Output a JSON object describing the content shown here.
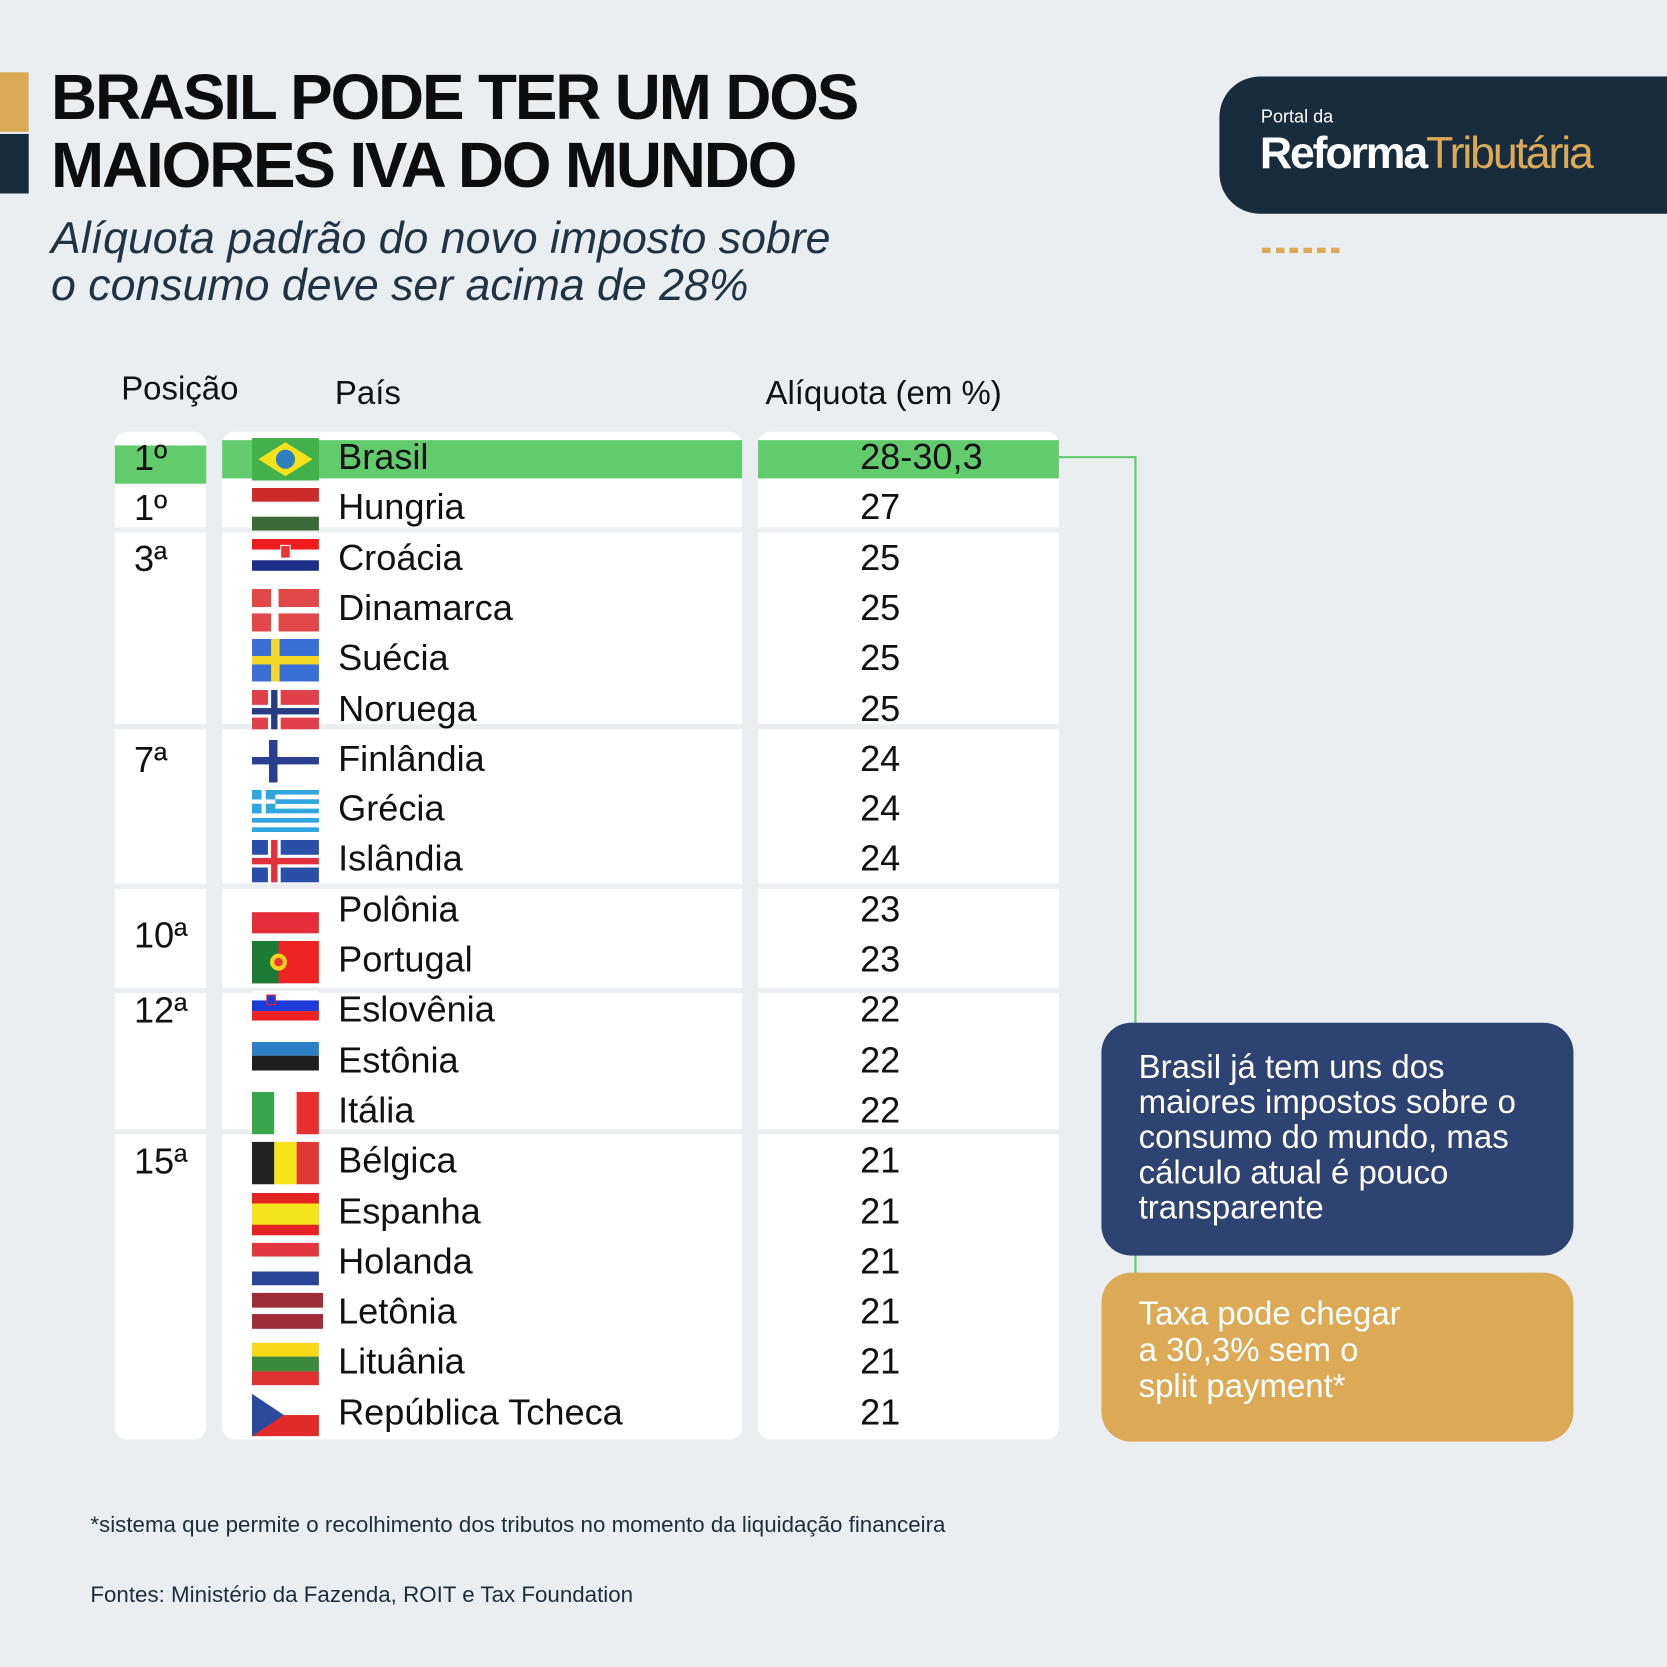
{
  "title_lines": [
    "BRASIL PODE TER UM DOS",
    "MAIORES IVA DO MUNDO"
  ],
  "subtitle_lines": [
    "Alíquota padrão do novo imposto sobre",
    "o consumo deve ser acima de 28%"
  ],
  "logo": {
    "small": "Portal da",
    "word1": "Reforma",
    "word2": "Tributária"
  },
  "headers": {
    "position": "Posição",
    "country": "País",
    "rate": "Alíquota (em %)"
  },
  "colors": {
    "highlight": "#62cc6d",
    "navy": "#172d3e",
    "gold": "#dcaa57",
    "blue": "#2d4371"
  },
  "groups": [
    {
      "position": "1º",
      "rows": [
        {
          "country": "Brasil",
          "rate": "28-30,3",
          "flag": "brazil-flag",
          "position": "1º",
          "highlight": true
        },
        {
          "country": "Hungria",
          "rate": "27",
          "flag": "hungary-flag",
          "position": "1º"
        }
      ]
    },
    {
      "position": "3ª",
      "rows": [
        {
          "country": "Croácia",
          "rate": "25",
          "flag": "croatia-flag"
        },
        {
          "country": "Dinamarca",
          "rate": "25",
          "flag": "denmark-flag"
        },
        {
          "country": "Suécia",
          "rate": "25",
          "flag": "sweden-flag"
        },
        {
          "country": "Noruega",
          "rate": "25",
          "flag": "norway-flag"
        }
      ]
    },
    {
      "position": "7ª",
      "rows": [
        {
          "country": "Finlândia",
          "rate": "24",
          "flag": "finland-flag"
        },
        {
          "country": "Grécia",
          "rate": "24",
          "flag": "greece-flag"
        },
        {
          "country": "Islândia",
          "rate": "24",
          "flag": "iceland-flag"
        }
      ]
    },
    {
      "position": "10ª",
      "rows": [
        {
          "country": "Polônia",
          "rate": "23",
          "flag": "poland-flag"
        },
        {
          "country": "Portugal",
          "rate": "23",
          "flag": "portugal-flag"
        }
      ]
    },
    {
      "position": "12ª",
      "rows": [
        {
          "country": "Eslovênia",
          "rate": "22",
          "flag": "slovenia-flag"
        },
        {
          "country": "Estônia",
          "rate": "22",
          "flag": "estonia-flag"
        },
        {
          "country": "Itália",
          "rate": "22",
          "flag": "italy-flag"
        }
      ]
    },
    {
      "position": "15ª",
      "rows": [
        {
          "country": "Bélgica",
          "rate": "21",
          "flag": "belgium-flag"
        },
        {
          "country": "Espanha",
          "rate": "21",
          "flag": "spain-flag"
        },
        {
          "country": "Holanda",
          "rate": "21",
          "flag": "netherlands-flag"
        },
        {
          "country": "Letônia",
          "rate": "21",
          "flag": "latvia-flag"
        },
        {
          "country": "Lituânia",
          "rate": "21",
          "flag": "lithuania-flag"
        },
        {
          "country": "República Tcheca",
          "rate": "21",
          "flag": "czech-flag"
        }
      ]
    }
  ],
  "notes": {
    "blue": "Brasil já tem uns dos maiores impostos sobre o consumo do mundo, mas cálculo atual é pouco transparente",
    "gold": "Taxa pode chegar\na 30,3% sem o\nsplit payment*"
  },
  "footnote": "*sistema que permite o recolhimento dos tributos no momento da liquidação financeira",
  "sources": "Fontes: Ministério da Fazenda, ROIT e Tax Foundation"
}
